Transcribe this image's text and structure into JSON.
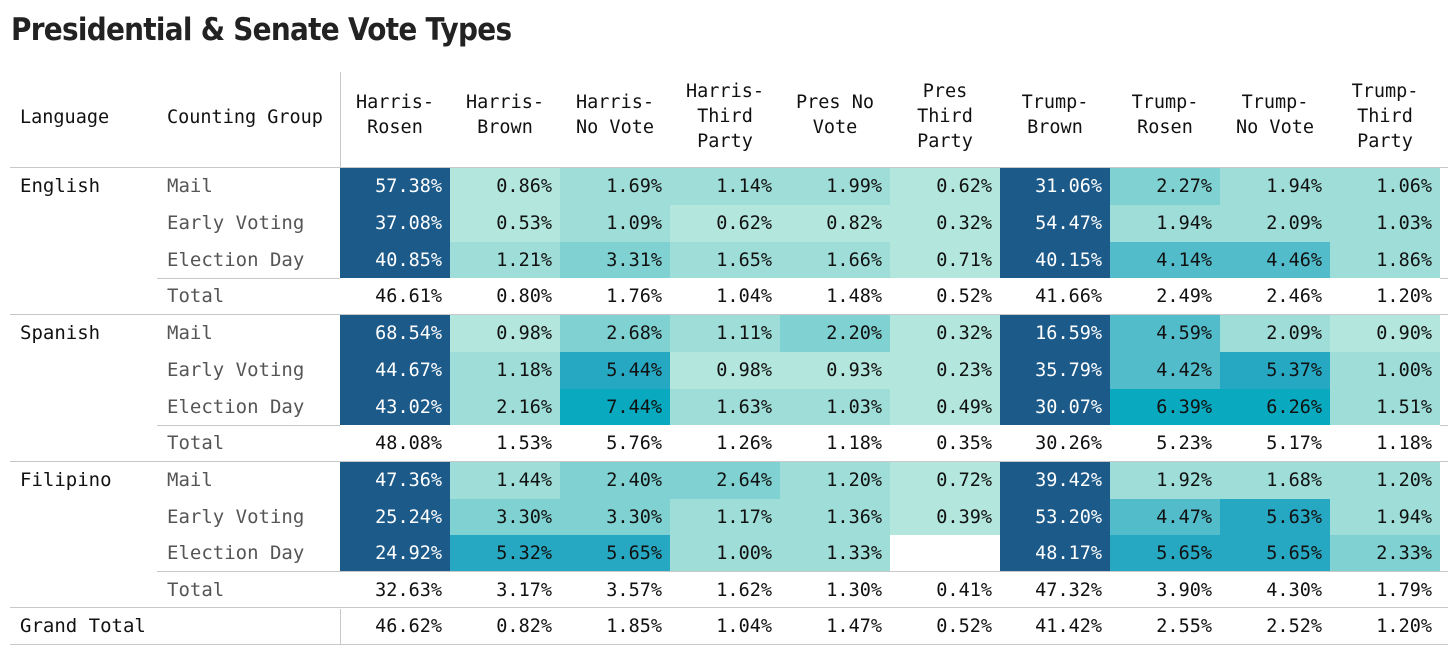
{
  "title": "Presidential & Senate Vote Types",
  "headers": {
    "language": "Language",
    "counting_group": "Counting Group",
    "columns": [
      "Harris-\nRosen",
      "Harris-\nBrown",
      "Harris-\nNo Vote",
      "Harris-\nThird\nParty",
      "Pres No\nVote",
      "Pres\nThird\nParty",
      "Trump-\nBrown",
      "Trump-\nRosen",
      "Trump-\nNo Vote",
      "Trump-\nThird\nParty"
    ]
  },
  "colors": {
    "very_light": "#b3e6dc",
    "light": "#9fded8",
    "mid_light": "#80d2d2",
    "mid": "#52bccb",
    "strong": "#27a8c2",
    "teal_bright": "#09aabf",
    "dark_navy": "#1c5a8a",
    "total_bg": "#ffffff"
  },
  "chart_data": {
    "type": "table",
    "title": "Presidential & Senate Vote Types",
    "columns": [
      "Harris-Rosen",
      "Harris-Brown",
      "Harris-No Vote",
      "Harris-Third Party",
      "Pres No Vote",
      "Pres Third Party",
      "Trump-Brown",
      "Trump-Rosen",
      "Trump-No Vote",
      "Trump-Third Party"
    ],
    "groups": [
      {
        "language": "English",
        "rows": [
          {
            "group": "Mail",
            "values": [
              "57.38%",
              "0.86%",
              "1.69%",
              "1.14%",
              "1.99%",
              "0.62%",
              "31.06%",
              "2.27%",
              "1.94%",
              "1.06%"
            ]
          },
          {
            "group": "Early Voting",
            "values": [
              "37.08%",
              "0.53%",
              "1.09%",
              "0.62%",
              "0.82%",
              "0.32%",
              "54.47%",
              "1.94%",
              "2.09%",
              "1.03%"
            ]
          },
          {
            "group": "Election Day",
            "values": [
              "40.85%",
              "1.21%",
              "3.31%",
              "1.65%",
              "1.66%",
              "0.71%",
              "40.15%",
              "4.14%",
              "4.46%",
              "1.86%"
            ]
          },
          {
            "group": "Total",
            "values": [
              "46.61%",
              "0.80%",
              "1.76%",
              "1.04%",
              "1.48%",
              "0.52%",
              "41.66%",
              "2.49%",
              "2.46%",
              "1.20%"
            ]
          }
        ]
      },
      {
        "language": "Spanish",
        "rows": [
          {
            "group": "Mail",
            "values": [
              "68.54%",
              "0.98%",
              "2.68%",
              "1.11%",
              "2.20%",
              "0.32%",
              "16.59%",
              "4.59%",
              "2.09%",
              "0.90%"
            ]
          },
          {
            "group": "Early Voting",
            "values": [
              "44.67%",
              "1.18%",
              "5.44%",
              "0.98%",
              "0.93%",
              "0.23%",
              "35.79%",
              "4.42%",
              "5.37%",
              "1.00%"
            ]
          },
          {
            "group": "Election Day",
            "values": [
              "43.02%",
              "2.16%",
              "7.44%",
              "1.63%",
              "1.03%",
              "0.49%",
              "30.07%",
              "6.39%",
              "6.26%",
              "1.51%"
            ]
          },
          {
            "group": "Total",
            "values": [
              "48.08%",
              "1.53%",
              "5.76%",
              "1.26%",
              "1.18%",
              "0.35%",
              "30.26%",
              "5.23%",
              "5.17%",
              "1.18%"
            ]
          }
        ]
      },
      {
        "language": "Filipino",
        "rows": [
          {
            "group": "Mail",
            "values": [
              "47.36%",
              "1.44%",
              "2.40%",
              "2.64%",
              "1.20%",
              "0.72%",
              "39.42%",
              "1.92%",
              "1.68%",
              "1.20%"
            ]
          },
          {
            "group": "Early Voting",
            "values": [
              "25.24%",
              "3.30%",
              "3.30%",
              "1.17%",
              "1.36%",
              "0.39%",
              "53.20%",
              "4.47%",
              "5.63%",
              "1.94%"
            ]
          },
          {
            "group": "Election Day",
            "values": [
              "24.92%",
              "5.32%",
              "5.65%",
              "1.00%",
              "1.33%",
              "",
              "48.17%",
              "5.65%",
              "5.65%",
              "2.33%"
            ]
          },
          {
            "group": "Total",
            "values": [
              "32.63%",
              "3.17%",
              "3.57%",
              "1.62%",
              "1.30%",
              "0.41%",
              "47.32%",
              "3.90%",
              "4.30%",
              "1.79%"
            ]
          }
        ]
      }
    ],
    "grand_total": {
      "label": "Grand Total",
      "values": [
        "46.62%",
        "0.82%",
        "1.85%",
        "1.04%",
        "1.47%",
        "0.52%",
        "41.42%",
        "2.55%",
        "2.52%",
        "1.20%"
      ]
    }
  }
}
